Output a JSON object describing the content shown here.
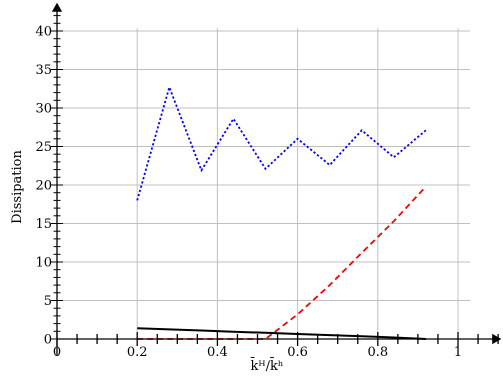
{
  "chart_data": {
    "type": "line",
    "title": "",
    "xlabel": "k̄ᴴ/k̄ʰ",
    "ylabel": "Dissipation",
    "xlim": [
      0,
      1.1
    ],
    "ylim": [
      0,
      43
    ],
    "grid": true,
    "x_ticks": [
      0,
      0.2,
      0.4,
      0.6,
      0.8,
      1
    ],
    "x_tick_labels": [
      "0",
      "0.2",
      "0.4",
      "0.6",
      "0.8",
      "1"
    ],
    "y_ticks": [
      0,
      5,
      10,
      15,
      20,
      25,
      30,
      35,
      40
    ],
    "y_tick_labels": [
      "0",
      "5",
      "10",
      "15",
      "20",
      "25",
      "30",
      "35",
      "40"
    ],
    "series": [
      {
        "color": "#0000ff",
        "style": "dotted",
        "x": [
          0.2,
          0.28,
          0.36,
          0.44,
          0.52,
          0.6,
          0.68,
          0.76,
          0.84,
          0.92
        ],
        "y": [
          18.0,
          32.7,
          21.9,
          28.6,
          22.1,
          26.0,
          22.6,
          27.1,
          23.6,
          27.1
        ]
      },
      {
        "color": "#ff0000",
        "style": "dashed",
        "x": [
          0.2,
          0.28,
          0.36,
          0.44,
          0.52,
          0.6,
          0.68,
          0.76,
          0.84,
          0.92
        ],
        "y": [
          0.0,
          0.0,
          0.0,
          0.0,
          0.0,
          3.2,
          7.0,
          11.2,
          15.3,
          19.8
        ]
      },
      {
        "color": "#000000",
        "style": "solid",
        "x": [
          0.2,
          0.28,
          0.36,
          0.44,
          0.52,
          0.6,
          0.68,
          0.76,
          0.84,
          0.92
        ],
        "y": [
          1.4,
          1.25,
          1.1,
          0.95,
          0.8,
          0.65,
          0.5,
          0.35,
          0.2,
          0.0
        ]
      }
    ]
  }
}
